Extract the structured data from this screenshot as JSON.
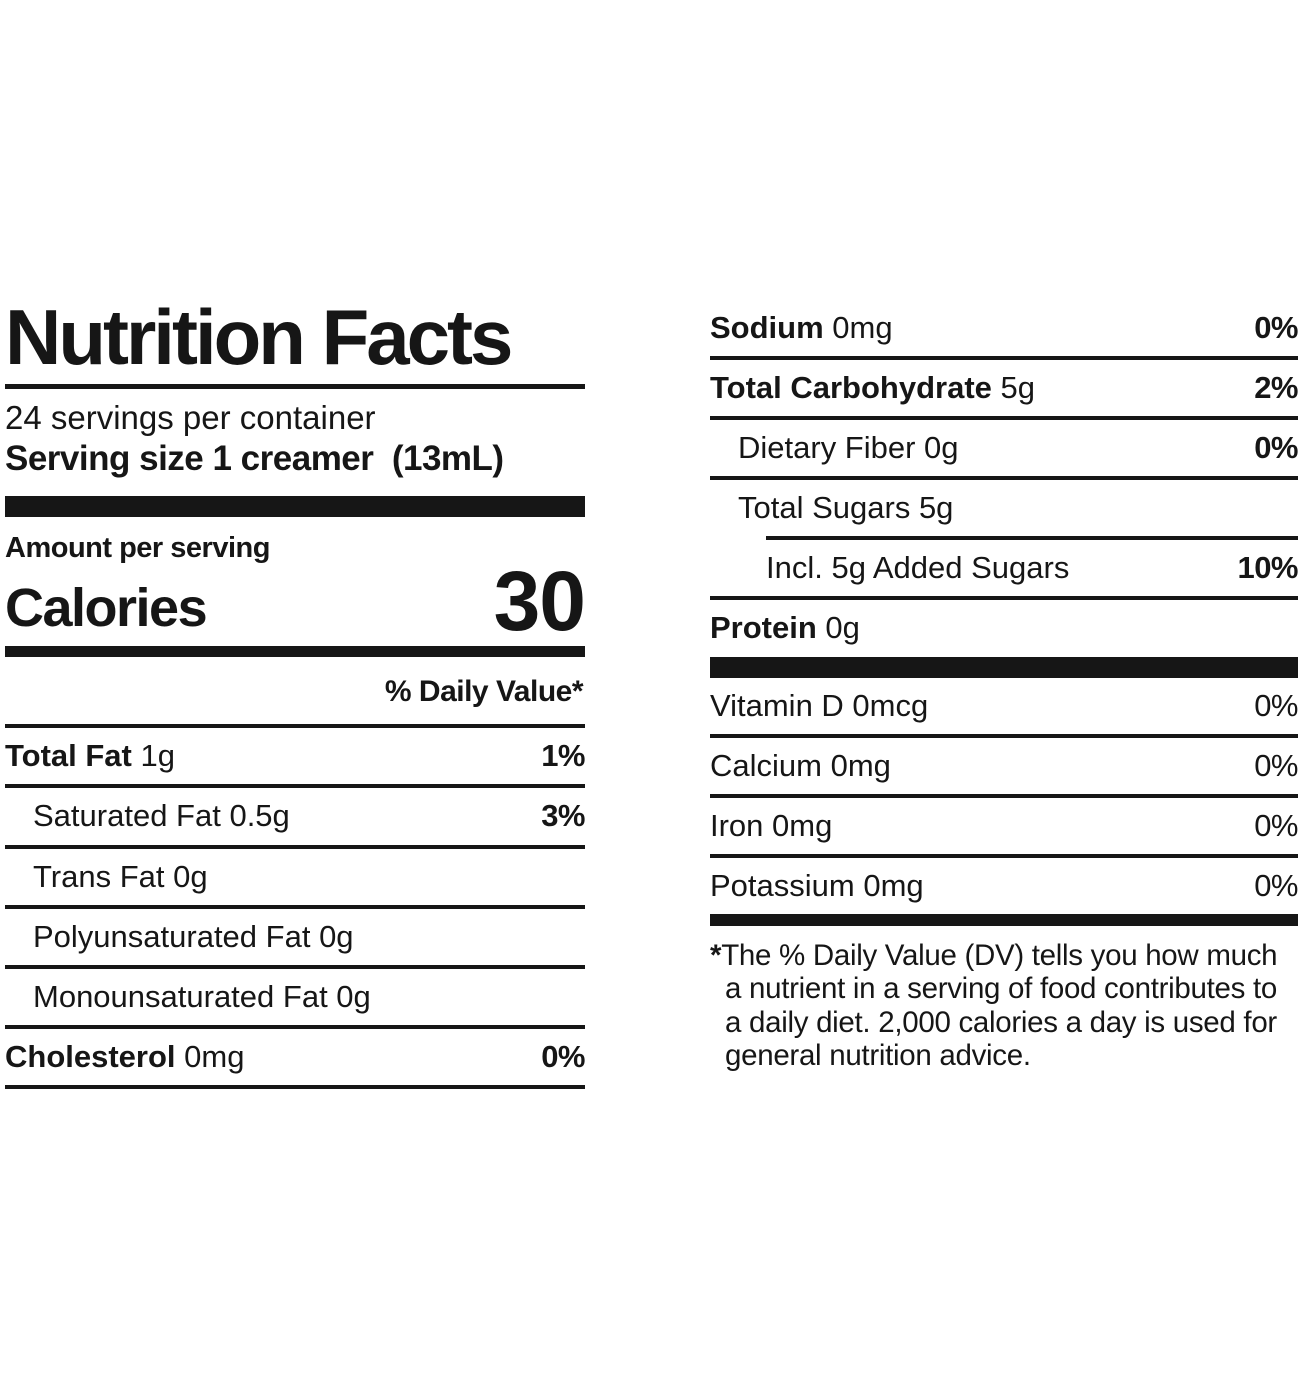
{
  "colors": {
    "ink": "#161616",
    "background": "#ffffff"
  },
  "header": {
    "title": "Nutrition Facts",
    "servings_per_container": "24 servings per container",
    "serving_size_line": "Serving size 1 creamer  (13mL)"
  },
  "calories_section": {
    "amount_per_serving_label": "Amount per serving",
    "calories_label": "Calories",
    "calories_value": "30"
  },
  "daily_value_header": "% Daily Value*",
  "left_column": {
    "rows": [
      {
        "name": "Total Fat",
        "name_bold": true,
        "amount": "1g",
        "dv": "1%",
        "dv_bold": true,
        "indent": 0,
        "rule_after": "full"
      },
      {
        "name": "Saturated Fat",
        "name_bold": false,
        "amount": "0.5g",
        "dv": "3%",
        "dv_bold": true,
        "indent": 1,
        "rule_after": "full"
      },
      {
        "name": "Trans Fat",
        "name_bold": false,
        "amount": "0g",
        "dv": "",
        "dv_bold": false,
        "indent": 1,
        "rule_after": "full"
      },
      {
        "name": "Polyunsaturated Fat",
        "name_bold": false,
        "amount": "0g",
        "dv": "",
        "dv_bold": false,
        "indent": 1,
        "rule_after": "full"
      },
      {
        "name": "Monounsaturated Fat",
        "name_bold": false,
        "amount": "0g",
        "dv": "",
        "dv_bold": false,
        "indent": 1,
        "rule_after": "full"
      },
      {
        "name": "Cholesterol",
        "name_bold": true,
        "amount": "0mg",
        "dv": "0%",
        "dv_bold": true,
        "indent": 0,
        "rule_after": "full"
      }
    ]
  },
  "right_column": {
    "rows": [
      {
        "name": "Sodium",
        "name_bold": true,
        "amount": "0mg",
        "dv": "0%",
        "dv_bold": true,
        "indent": 0,
        "rule_after": "full"
      },
      {
        "name": "Total Carbohydrate",
        "name_bold": true,
        "amount": "5g",
        "dv": "2%",
        "dv_bold": true,
        "indent": 0,
        "rule_after": "full"
      },
      {
        "name": "Dietary Fiber",
        "name_bold": false,
        "amount": "0g",
        "dv": "0%",
        "dv_bold": true,
        "indent": 1,
        "rule_after": "full"
      },
      {
        "name": "Total Sugars",
        "name_bold": false,
        "amount": "5g",
        "dv": "",
        "dv_bold": false,
        "indent": 1,
        "rule_after": "indent"
      },
      {
        "name": "Incl. 5g Added Sugars",
        "name_bold": false,
        "amount": "",
        "dv": "10%",
        "dv_bold": true,
        "indent": 2,
        "rule_after": "full"
      },
      {
        "name": "Protein",
        "name_bold": true,
        "amount": "0g",
        "dv": "",
        "dv_bold": false,
        "indent": 0,
        "rule_after": "thick"
      },
      {
        "name": "Vitamin D",
        "name_bold": false,
        "amount": "0mcg",
        "dv": "0%",
        "dv_bold": false,
        "indent": 0,
        "rule_after": "full"
      },
      {
        "name": "Calcium",
        "name_bold": false,
        "amount": "0mg",
        "dv": "0%",
        "dv_bold": false,
        "indent": 0,
        "rule_after": "full"
      },
      {
        "name": "Iron",
        "name_bold": false,
        "amount": "0mg",
        "dv": "0%",
        "dv_bold": false,
        "indent": 0,
        "rule_after": "full"
      },
      {
        "name": "Potassium",
        "name_bold": false,
        "amount": "0mg",
        "dv": "0%",
        "dv_bold": false,
        "indent": 0,
        "rule_after": "medium"
      }
    ]
  },
  "footnote": {
    "marker": "*",
    "text": "The % Daily Value (DV) tells you how much a nutrient in a serving of food contributes to a daily diet. 2,000 calories a day is used for general nutrition advice."
  }
}
